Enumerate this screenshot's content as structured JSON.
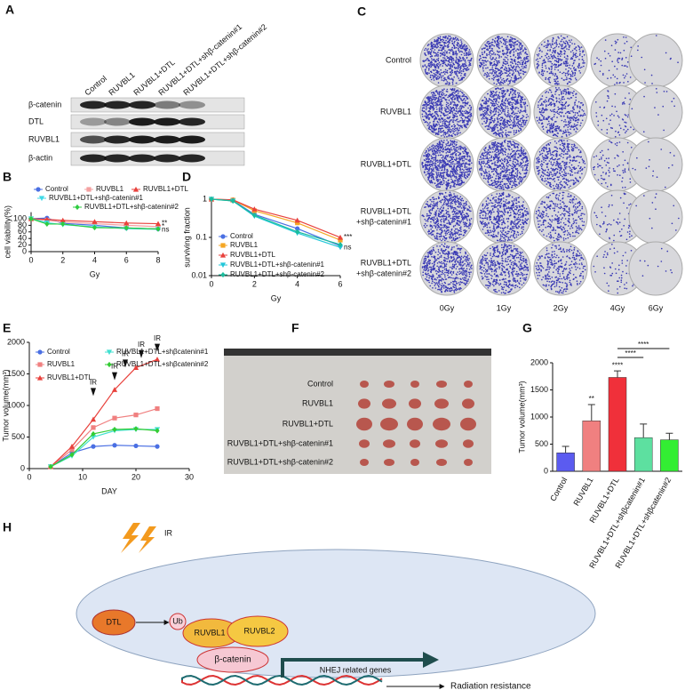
{
  "panel_labels": [
    "A",
    "B",
    "C",
    "D",
    "E",
    "F",
    "G",
    "H"
  ],
  "blot": {
    "lanes": [
      "Control",
      "RUVBL1",
      "RUVBL1+DTL",
      "RUVBL1+DTL+shβ-catenin#1",
      "RUVBL1+DTL+shβ-catenin#2"
    ],
    "proteins": [
      "β-catenin",
      "DTL",
      "RUVBL1",
      "β-actin"
    ]
  },
  "colony": {
    "conditions": [
      [
        "Control"
      ],
      [
        "RUVBL1"
      ],
      [
        "RUVBL1+DTL"
      ],
      [
        "RUVBL1+DTL",
        "+shβ-catenin#1"
      ],
      [
        "RUVBL1+DTL",
        "+shβ-catenin#2"
      ]
    ],
    "doses": [
      "0Gy",
      "1Gy",
      "2Gy",
      "4Gy",
      "6Gy"
    ]
  },
  "chart_data": [
    {
      "type": "line",
      "ylabel": "cell viability(%)",
      "xlabel": "Gy",
      "x": [
        0,
        1,
        2,
        4,
        6,
        8
      ],
      "xlim": [
        0,
        8
      ],
      "xticks": [
        0,
        2,
        4,
        6,
        8
      ],
      "ylim": [
        0,
        120
      ],
      "yticks": [
        0,
        20,
        40,
        60,
        80,
        100
      ],
      "series": [
        {
          "name": "Control",
          "color": "#4a6fe3",
          "marker": "circle",
          "values": [
            100,
            102,
            86,
            80,
            72,
            69
          ]
        },
        {
          "name": "RUVBL1",
          "color": "#f4a0a0",
          "marker": "square",
          "values": [
            100,
            95,
            90,
            85,
            80,
            76
          ]
        },
        {
          "name": "RUVBL1+DTL",
          "color": "#e8413c",
          "marker": "triangle",
          "values": [
            100,
            98,
            95,
            91,
            87,
            85
          ]
        },
        {
          "name": "RUVBL1+DTL+shβ-catenin#1",
          "color": "#3fd9e6",
          "marker": "tri-down",
          "values": [
            100,
            88,
            82,
            75,
            70,
            68
          ]
        },
        {
          "name": "RUVBL1+DTL+shβ-catenin#2",
          "color": "#2ecc40",
          "marker": "diamond",
          "values": [
            100,
            84,
            84,
            73,
            72,
            69
          ]
        }
      ],
      "annotations": [
        {
          "text": "**",
          "x": 8,
          "y": 86
        },
        {
          "text": "*",
          "x": 8,
          "y": 76
        },
        {
          "text": "ns",
          "x": 8,
          "y": 67
        }
      ]
    },
    {
      "type": "line",
      "yscale": "log",
      "ylabel": "surviving fraction",
      "xlabel": "Gy",
      "x": [
        0,
        1,
        2,
        4,
        6
      ],
      "xlim": [
        0,
        6
      ],
      "xticks": [
        0,
        2,
        4,
        6
      ],
      "ylim": [
        0.01,
        1
      ],
      "yticks": [
        0.01,
        0.1,
        1
      ],
      "series": [
        {
          "name": "Control",
          "color": "#4a6fe3",
          "marker": "circle",
          "values": [
            1,
            0.93,
            0.4,
            0.17,
            0.06
          ]
        },
        {
          "name": "RUVBL1",
          "color": "#f5a623",
          "marker": "square",
          "values": [
            1,
            0.95,
            0.5,
            0.24,
            0.085
          ]
        },
        {
          "name": "RUVBL1+DTL",
          "color": "#e8413c",
          "marker": "triangle",
          "values": [
            1,
            0.96,
            0.55,
            0.28,
            0.1
          ]
        },
        {
          "name": "RUVBL1+DTL+shβ-catenin#1",
          "color": "#22c7d9",
          "marker": "tri-down",
          "values": [
            1,
            0.9,
            0.36,
            0.13,
            0.055
          ]
        },
        {
          "name": "RUVBL1+DTL+shβ-catenin#2",
          "color": "#1abc9c",
          "marker": "diamond",
          "values": [
            1,
            0.9,
            0.38,
            0.14,
            0.065
          ]
        }
      ],
      "annotations": [
        {
          "text": "***",
          "x": 6,
          "y": 0.1
        },
        {
          "text": "ns",
          "x": 6,
          "y": 0.055
        }
      ]
    },
    {
      "type": "line",
      "ylabel": "Tumor volume(mm³)",
      "xlabel": "DAY",
      "x": [
        4,
        8,
        12,
        16,
        20,
        24
      ],
      "xlim": [
        0,
        30
      ],
      "xticks": [
        0,
        10,
        20,
        30
      ],
      "ylim": [
        0,
        2000
      ],
      "yticks": [
        0,
        500,
        1000,
        1500,
        2000
      ],
      "series": [
        {
          "name": "Control",
          "color": "#4a6fe3",
          "marker": "circle",
          "values": [
            30,
            250,
            350,
            370,
            360,
            350
          ]
        },
        {
          "name": "RUVBL1",
          "color": "#f08080",
          "marker": "square",
          "values": [
            30,
            300,
            650,
            800,
            850,
            950
          ]
        },
        {
          "name": "RUVBL1+DTL",
          "color": "#e8413c",
          "marker": "triangle",
          "values": [
            30,
            350,
            780,
            1250,
            1600,
            1730
          ]
        },
        {
          "name": "RUVBL1+DTL+shβcatenin#1",
          "color": "#40e0d0",
          "marker": "tri-down",
          "values": [
            30,
            200,
            500,
            600,
            620,
            620
          ]
        },
        {
          "name": "RUVBL1+DTL+shβcatenin#2",
          "color": "#33cc33",
          "marker": "diamond",
          "values": [
            30,
            220,
            550,
            620,
            630,
            600
          ]
        }
      ],
      "irradiation": [
        {
          "x": 12,
          "y": 1150,
          "text": "IR"
        },
        {
          "x": 16,
          "y": 1400,
          "text": "IR"
        },
        {
          "x": 18,
          "y": 1600,
          "text": "IR"
        },
        {
          "x": 21,
          "y": 1750,
          "text": "IR"
        },
        {
          "x": 24,
          "y": 1850,
          "text": "IR"
        }
      ]
    },
    {
      "type": "bar",
      "ylabel": "Tumor volume(mm³)",
      "categories": [
        "Control",
        "RUVBL1",
        "RUVBL1+DTL",
        "RUVBL1+DTL+shβcatenin#1",
        "RUVBL1+DTL+shβcatenin#2"
      ],
      "values": [
        340,
        930,
        1730,
        620,
        580
      ],
      "errors": [
        120,
        300,
        120,
        250,
        120
      ],
      "colors": [
        "#5b5bf0",
        "#f08080",
        "#f0303a",
        "#5de0a0",
        "#33ee33"
      ],
      "ylim": [
        0,
        2000
      ],
      "yticks": [
        0,
        500,
        1000,
        1500,
        2000
      ],
      "annotations": [
        {
          "bar": 1,
          "text": "**"
        },
        {
          "bar": 2,
          "text": "****"
        }
      ],
      "brackets": [
        {
          "from": 2,
          "to": 3,
          "text": "****"
        },
        {
          "from": 2,
          "to": 4,
          "text": "****"
        }
      ]
    }
  ],
  "tumor_photo": {
    "groups": [
      "Control",
      "RUVBL1",
      "RUVBL1+DTL",
      "RUVBL1+DTL+shβ-catenin#1",
      "RUVBL1+DTL+shβ-catenin#2"
    ]
  },
  "diagram": {
    "stimulus": "IR",
    "e3": "DTL",
    "ubiquitin": "Ub",
    "complex": [
      "RUVBL1",
      "RUVBL2"
    ],
    "factor": "β-catenin",
    "genes": "NHEJ related genes",
    "outcome": "Radiation resistance"
  }
}
